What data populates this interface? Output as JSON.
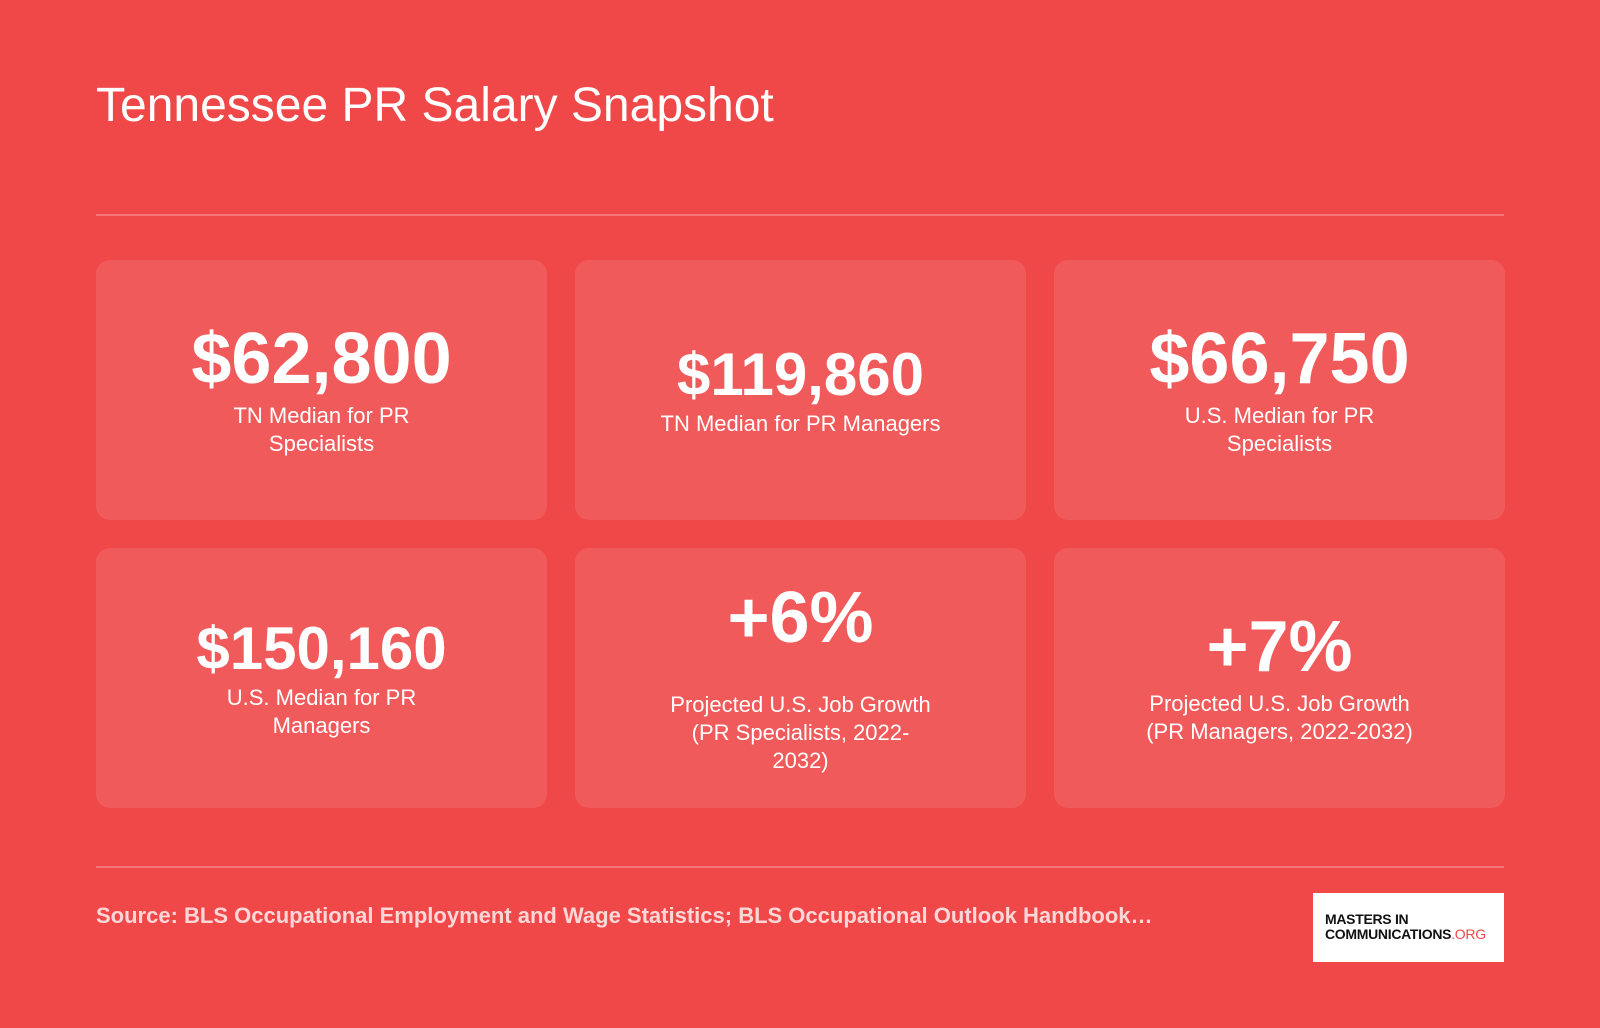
{
  "title": "Tennessee PR Salary Snapshot",
  "colors": {
    "background": "#f04848",
    "text": "#ffffff",
    "logo_accent": "#f04848"
  },
  "stats": [
    {
      "value": "$62,800",
      "label": "TN Median for PR Specialists"
    },
    {
      "value": "$119,860",
      "label": "TN Median for PR Managers"
    },
    {
      "value": "$66,750",
      "label": "U.S. Median for PR Specialists"
    },
    {
      "value": "$150,160",
      "label": "U.S. Median for PR Managers"
    },
    {
      "value": "+6%",
      "label": "Projected U.S. Job Growth (PR Specialists, 2022-2032)"
    },
    {
      "value": "+7%",
      "label": "Projected U.S. Job Growth (PR Managers, 2022-2032)"
    }
  ],
  "source": "Source: BLS Occupational Employment and Wage Statistics; BLS Occupational Outlook Handbook…",
  "logo": {
    "line1": "MASTERS IN",
    "line2": "COMMUNICATIONS",
    "suffix": ".ORG"
  }
}
